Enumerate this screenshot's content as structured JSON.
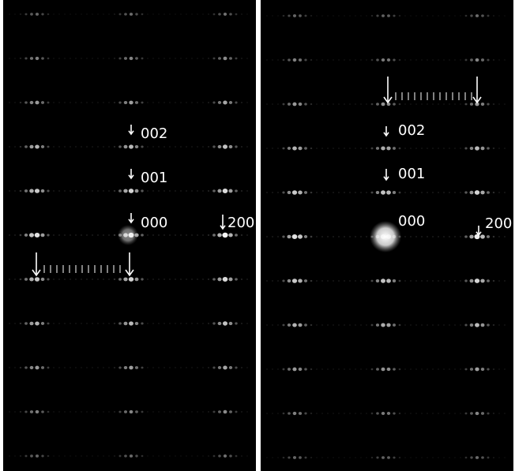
{
  "panels": [
    {
      "labels": [
        "002",
        "001",
        "000",
        "200"
      ]
    },
    {
      "labels": [
        "002",
        "001",
        "000",
        "200"
      ]
    }
  ]
}
